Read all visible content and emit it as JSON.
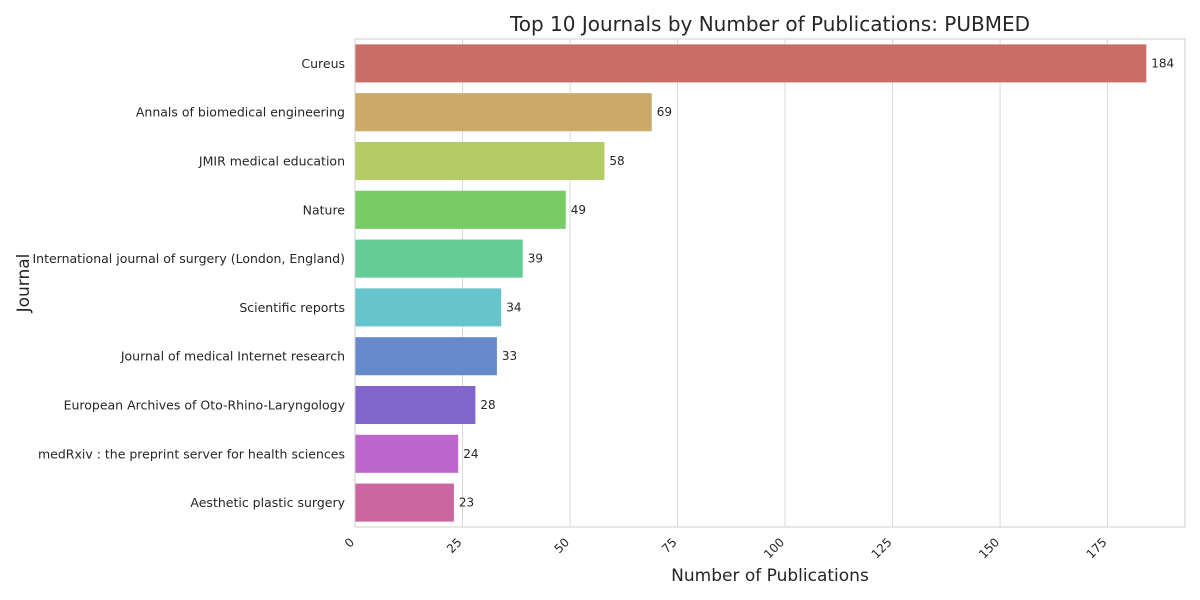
{
  "chart_data": {
    "type": "bar",
    "orientation": "horizontal",
    "title": "Top 10 Journals by Number of Publications: PUBMED",
    "xlabel": "Number of Publications",
    "ylabel": "Journal",
    "xlim": [
      0,
      193
    ],
    "xticks": [
      0,
      25,
      50,
      75,
      100,
      125,
      150,
      175
    ],
    "grid": true,
    "categories": [
      "Cureus",
      "Annals of biomedical engineering",
      "JMIR medical education",
      "Nature",
      "International journal of surgery (London, England)",
      "Scientific reports",
      "Journal of medical Internet research",
      "European Archives of Oto-Rhino-Laryngology ",
      "medRxiv : the preprint server for health sciences",
      "Aesthetic plastic surgery"
    ],
    "values": [
      184,
      69,
      58,
      49,
      39,
      34,
      33,
      28,
      24,
      23
    ],
    "colors": [
      "#cb6d66",
      "#cca966",
      "#b3cc66",
      "#77cc66",
      "#66cc95",
      "#66c5cc",
      "#6689cc",
      "#8266cc",
      "#bd66cc",
      "#cc66a1"
    ]
  }
}
